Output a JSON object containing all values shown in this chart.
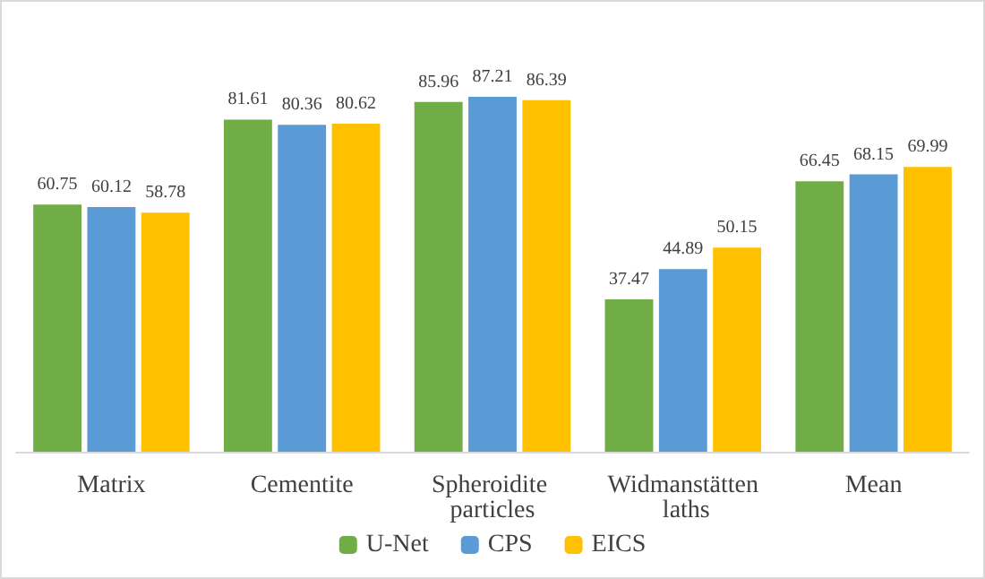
{
  "chart_data": {
    "type": "bar",
    "categories": [
      "Matrix",
      "Cementite",
      "Spheroidite particles",
      "Widmanstätten laths",
      "Mean"
    ],
    "series": [
      {
        "name": "U-Net",
        "color": "#70ad47",
        "values": [
          60.75,
          81.61,
          85.96,
          37.47,
          66.45
        ]
      },
      {
        "name": "CPS",
        "color": "#5b9bd5",
        "values": [
          60.12,
          80.36,
          87.21,
          44.89,
          68.15
        ]
      },
      {
        "name": "EICS",
        "color": "#ffc000",
        "values": [
          58.78,
          80.62,
          86.39,
          50.15,
          69.99
        ]
      }
    ],
    "data_labels": true,
    "legend": "bottom"
  }
}
